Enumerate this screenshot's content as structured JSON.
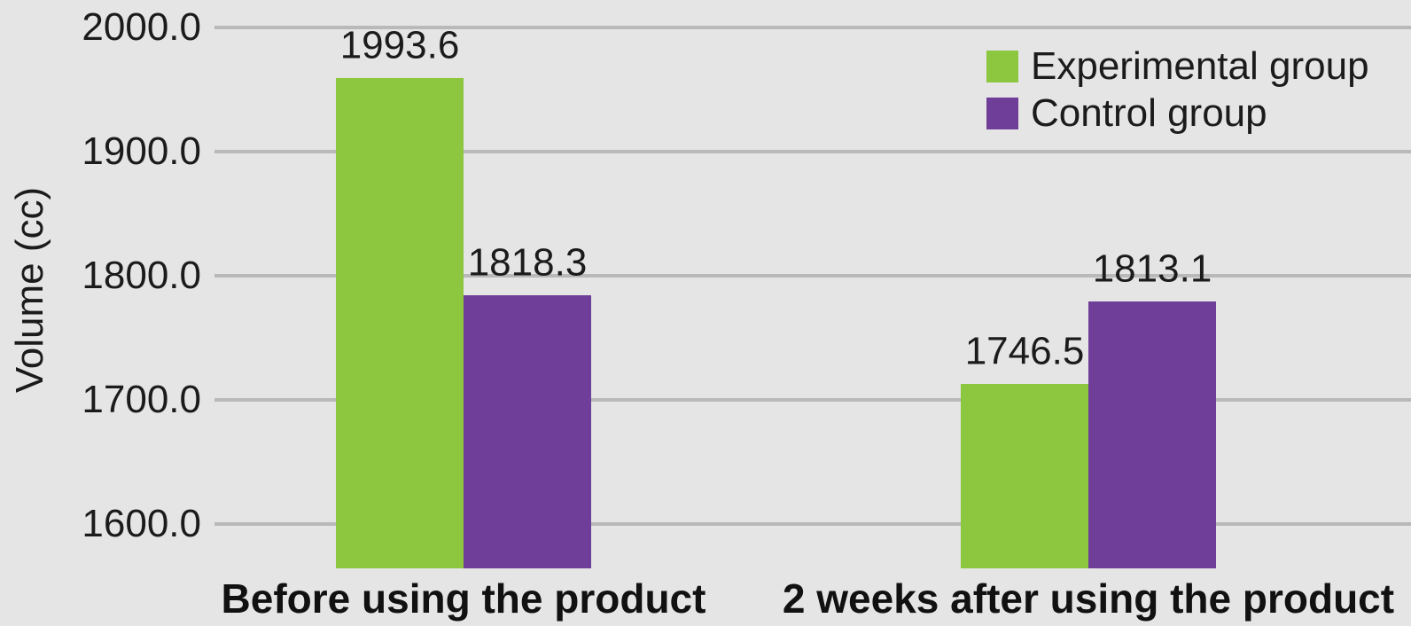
{
  "chart_data": {
    "type": "bar",
    "title": "",
    "xlabel": "",
    "ylabel": "Volume (cc)",
    "categories": [
      "Before using the product",
      "2 weeks after using the product"
    ],
    "series": [
      {
        "name": "Experimental group",
        "color": "#8DC63F",
        "values": [
          1993.6,
          1746.5
        ]
      },
      {
        "name": "Control group",
        "color": "#6F3E98",
        "values": [
          1818.3,
          1813.1
        ]
      }
    ],
    "yticks": [
      2000.0,
      1900.0,
      1800.0,
      1700.0,
      1600.0
    ],
    "ytick_decimals": 1,
    "data_label_decimals": 1,
    "ylim": [
      1564.2,
      2022.3
    ],
    "grid": true,
    "legend_position": "top-right",
    "bar_render_offset": -34,
    "background_color": "#E5E5E5",
    "gridline_color": "#B9B9B9",
    "text_color": "#1B1B1B"
  }
}
